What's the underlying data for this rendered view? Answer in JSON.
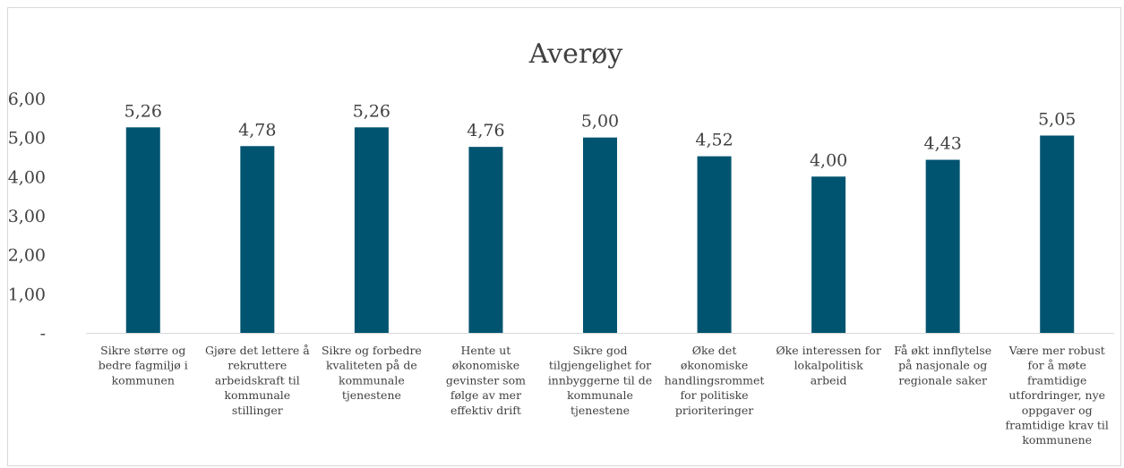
{
  "chart_data": {
    "type": "bar",
    "title": "Averøy",
    "xlabel": "",
    "ylabel": "",
    "ylim": [
      0,
      6
    ],
    "yticks": [
      "-",
      "1,00",
      "2,00",
      "3,00",
      "4,00",
      "5,00",
      "6,00"
    ],
    "grid": false,
    "legend": "none",
    "bar_color": "#005470",
    "categories": [
      [
        "Sikre større og",
        "bedre fagmiljø i",
        "kommunen"
      ],
      [
        "Gjøre det lettere å",
        "rekruttere",
        "arbeidskraft til",
        "kommunale",
        "stillinger"
      ],
      [
        "Sikre og forbedre",
        "kvaliteten på de",
        "kommunale",
        "tjenestene"
      ],
      [
        "Hente ut",
        "økonomiske",
        "gevinster som",
        "følge av mer",
        "effektiv drift"
      ],
      [
        "Sikre god",
        "tilgjengelighet for",
        "innbyggerne til de",
        "kommunale",
        "tjenestene"
      ],
      [
        "Øke det",
        "økonomiske",
        "handlingsrommet",
        "for politiske",
        "prioriteringer"
      ],
      [
        "Øke interessen for",
        "lokalpolitisk",
        "arbeid"
      ],
      [
        "Få økt innflytelse",
        "på nasjonale og",
        "regionale saker"
      ],
      [
        "Være mer robust",
        "for å møte",
        "framtidige",
        "utfordringer, nye",
        "oppgaver og",
        "framtidige krav til",
        "kommunene"
      ]
    ],
    "values": [
      5.26,
      4.78,
      5.26,
      4.76,
      5.0,
      4.52,
      4.0,
      4.43,
      5.05
    ],
    "data_labels": [
      "5,26",
      "4,78",
      "5,26",
      "4,76",
      "5,00",
      "4,52",
      "4,00",
      "4,43",
      "5,05"
    ]
  }
}
